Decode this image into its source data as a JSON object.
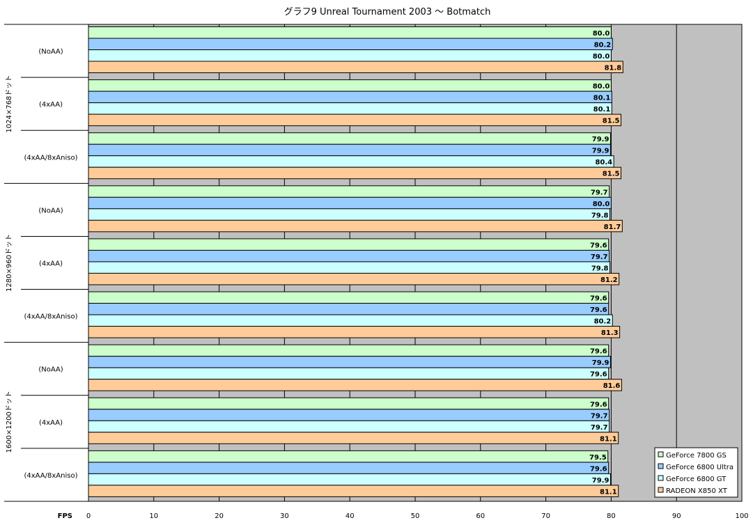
{
  "chart_data": {
    "type": "bar",
    "orientation": "horizontal",
    "title": "グラフ9  Unreal Tournament 2003 ～ Botmatch",
    "xlabel": "FPS",
    "xlim": [
      0,
      100
    ],
    "xticks": [
      0,
      10,
      20,
      30,
      40,
      50,
      60,
      70,
      80,
      90,
      100
    ],
    "grid": true,
    "legend_position": "bottom-right",
    "groups": [
      {
        "label": "1024×768ドット",
        "categories": [
          "(NoAA)",
          "(4xAA)",
          "(4xAA/8xAniso)"
        ]
      },
      {
        "label": "1280×960ドット",
        "categories": [
          "(NoAA)",
          "(4xAA)",
          "(4xAA/8xAniso)"
        ]
      },
      {
        "label": "1600×1200ドット",
        "categories": [
          "(NoAA)",
          "(4xAA)",
          "(4xAA/8xAniso)"
        ]
      }
    ],
    "series": [
      {
        "name": "GeForce 7800 GS",
        "color": "#ccffcc",
        "values": [
          80.0,
          80.0,
          79.9,
          79.7,
          79.6,
          79.6,
          79.6,
          79.6,
          79.5
        ]
      },
      {
        "name": "GeForce 6800 Ultra",
        "color": "#99ccff",
        "values": [
          80.2,
          80.1,
          79.9,
          80.0,
          79.7,
          79.6,
          79.9,
          79.7,
          79.6
        ]
      },
      {
        "name": "GeForce 6800 GT",
        "color": "#ccffff",
        "values": [
          80.0,
          80.1,
          80.4,
          79.8,
          79.8,
          80.2,
          79.6,
          79.7,
          79.9
        ]
      },
      {
        "name": "RADEON X850 XT",
        "color": "#ffcc99",
        "values": [
          81.8,
          81.5,
          81.5,
          81.7,
          81.2,
          81.3,
          81.6,
          81.1,
          81.1
        ]
      }
    ],
    "colors": {
      "plot_background": "#c0c0c0",
      "gridline": "#000000",
      "bar_border": "#000000"
    }
  }
}
